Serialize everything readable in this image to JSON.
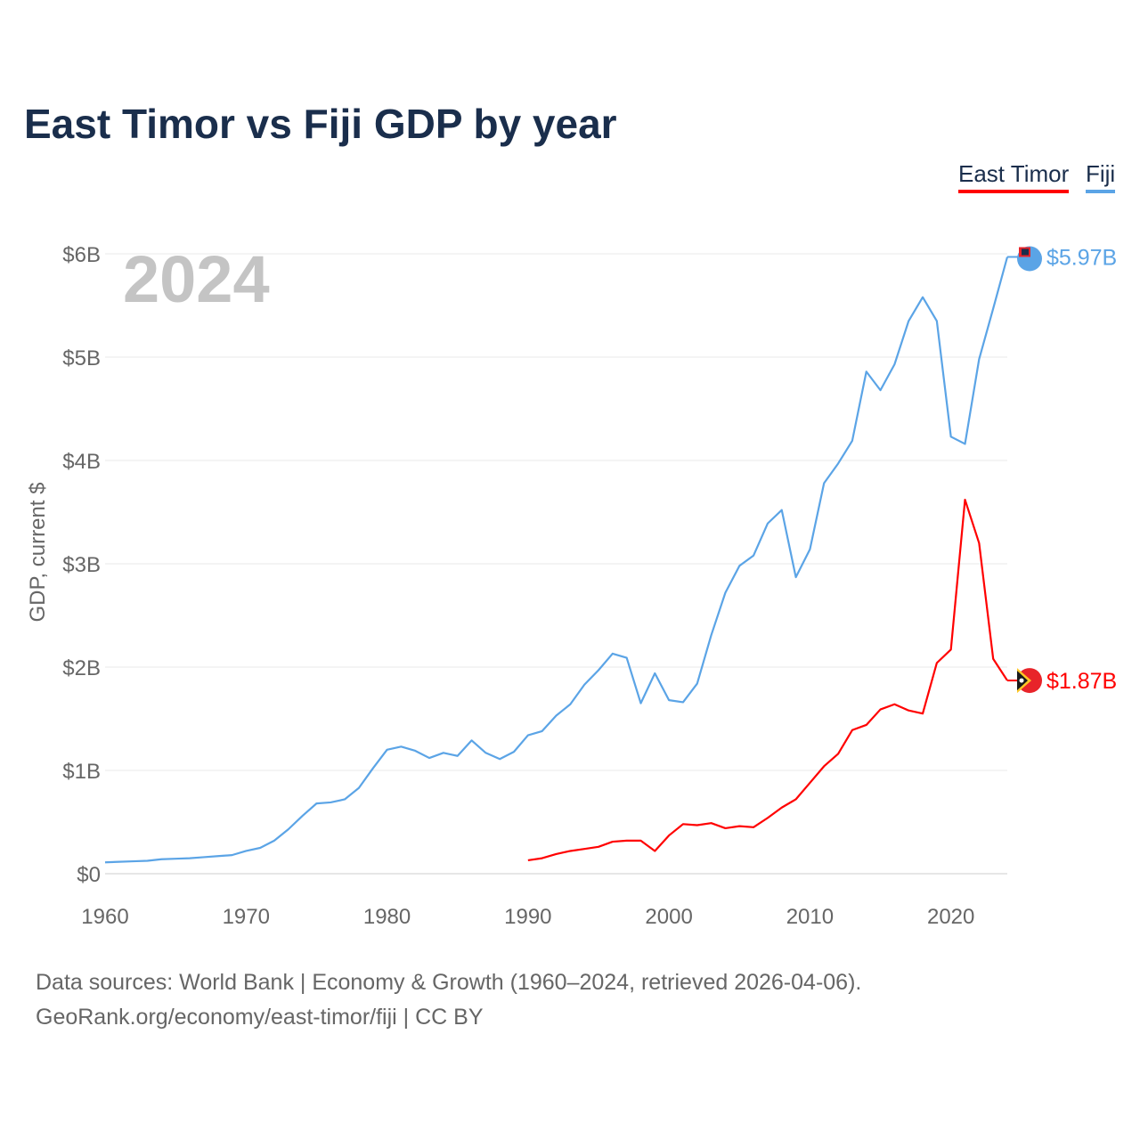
{
  "title": "East Timor vs Fiji GDP by year",
  "footer": {
    "line1": "Data sources: World Bank | Economy & Growth (1960–2024, retrieved 2026-04-06).",
    "line2": "GeoRank.org/economy/east-timor/fiji | CC BY"
  },
  "chart_data": {
    "type": "line",
    "title": "East Timor vs Fiji GDP by year",
    "xlabel": "",
    "ylabel": "GDP, current $",
    "year_watermark": "2024",
    "xlim": [
      1960,
      2024
    ],
    "ylim": [
      0,
      6
    ],
    "x_ticks": [
      "1960",
      "1970",
      "1980",
      "1990",
      "2000",
      "2010",
      "2020"
    ],
    "y_ticks": [
      "$0",
      "$1B",
      "$2B",
      "$3B",
      "$4B",
      "$5B",
      "$6B"
    ],
    "grid": true,
    "legend_position": "top-right",
    "series": [
      {
        "name": "East Timor",
        "color": "#ff0000",
        "end_label": "$1.87B",
        "start_year": 1990,
        "values": [
          0.13,
          0.15,
          0.19,
          0.22,
          0.24,
          0.26,
          0.31,
          0.32,
          0.32,
          0.22,
          0.37,
          0.48,
          0.47,
          0.49,
          0.44,
          0.46,
          0.45,
          0.54,
          0.64,
          0.72,
          0.88,
          1.04,
          1.16,
          1.39,
          1.44,
          1.59,
          1.64,
          1.58,
          1.55,
          2.04,
          2.17,
          3.62,
          3.2,
          2.08,
          1.87
        ]
      },
      {
        "name": "Fiji",
        "color": "#5ba4e6",
        "end_label": "$5.97B",
        "start_year": 1960,
        "values": [
          0.11,
          0.115,
          0.12,
          0.125,
          0.14,
          0.145,
          0.15,
          0.16,
          0.17,
          0.18,
          0.22,
          0.25,
          0.32,
          0.43,
          0.56,
          0.68,
          0.69,
          0.72,
          0.83,
          1.02,
          1.2,
          1.23,
          1.19,
          1.12,
          1.17,
          1.14,
          1.29,
          1.17,
          1.11,
          1.18,
          1.34,
          1.38,
          1.53,
          1.64,
          1.83,
          1.97,
          2.13,
          2.09,
          1.65,
          1.94,
          1.68,
          1.66,
          1.84,
          2.31,
          2.72,
          2.98,
          3.08,
          3.39,
          3.52,
          2.87,
          3.14,
          3.78,
          3.97,
          4.19,
          4.86,
          4.68,
          4.93,
          5.35,
          5.58,
          5.35,
          4.23,
          4.16,
          4.98,
          5.47,
          5.97
        ]
      }
    ]
  }
}
